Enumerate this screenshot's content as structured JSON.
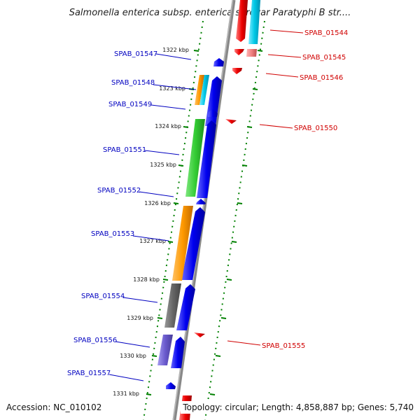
{
  "title": "Salmonella enterica subsp. enterica serovar Paratyphi B str....",
  "footer": {
    "accession": "Accession: NC_010102",
    "topology": "Topology: circular; Length: 4,858,887 bp; Genes: 5,740"
  },
  "scale_ticks": [
    "1322 kbp",
    "1323 kbp",
    "1324 kbp",
    "1325 kbp",
    "1326 kbp",
    "1327 kbp",
    "1328 kbp",
    "1329 kbp",
    "1330 kbp",
    "1331 kbp"
  ],
  "genes_left": [
    "SPAB_01547",
    "SPAB_01548",
    "SPAB_01549",
    "SPAB_01551",
    "SPAB_01552",
    "SPAB_01553",
    "SPAB_01554",
    "SPAB_01556",
    "SPAB_01557"
  ],
  "genes_right": [
    "SPAB_01544",
    "SPAB_01545",
    "SPAB_01546",
    "SPAB_01550",
    "SPAB_01555"
  ],
  "colors": {
    "forward_strand": "#0000ee",
    "reverse_strand": "#ee0000",
    "backbone": "#888888",
    "ticks": "#008000",
    "label_forward": "#0000c0",
    "label_reverse": "#d00000",
    "cog_green": "#33cc33",
    "cog_orange": "#ff9900",
    "cog_gray": "#666666",
    "cog_purple": "#6a5acd",
    "cog_cyan": "#00c8e6",
    "cog_red": "#ee0000",
    "cog_pink": "#f08080"
  }
}
